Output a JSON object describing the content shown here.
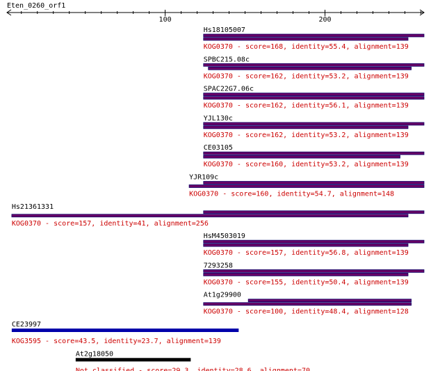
{
  "title": "Eten_0260_orf1",
  "axis": {
    "min": 1,
    "max": 262,
    "ticks": [
      100,
      200
    ]
  },
  "colors": {
    "axis": "#000000",
    "label": "#000000",
    "annotation": "#cc0000",
    "kog_bar_fill": "#660066",
    "kog_bar_stroke": "#000066",
    "kog3595_bar": "#0000aa",
    "unclassified_bar": "#000000"
  },
  "hits": [
    {
      "name": "Hs18105007",
      "annotation": "KOG0370 - score=168, identity=55.4, alignment=139",
      "query_bar": [
        124,
        262
      ],
      "hit_bar": [
        124,
        252
      ],
      "color": "kog"
    },
    {
      "name": "SPBC215.08c",
      "annotation": "KOG0370 - score=162, identity=53.2, alignment=139",
      "query_bar": [
        124,
        262
      ],
      "hit_bar": [
        127,
        254
      ],
      "color": "kog"
    },
    {
      "name": "SPAC22G7.06c",
      "annotation": "KOG0370 - score=162, identity=56.1, alignment=139",
      "query_bar": [
        124,
        262
      ],
      "hit_bar": [
        124,
        262
      ],
      "color": "kog"
    },
    {
      "name": "YJL130c",
      "annotation": "KOG0370 - score=162, identity=53.2, alignment=139",
      "query_bar": [
        124,
        262
      ],
      "hit_bar": [
        124,
        252
      ],
      "color": "kog"
    },
    {
      "name": "CE03105",
      "annotation": "KOG0370 - score=160, identity=53.2, alignment=139",
      "query_bar": [
        124,
        262
      ],
      "hit_bar": [
        124,
        247
      ],
      "color": "kog"
    },
    {
      "name": "YJR109c",
      "annotation": "KOG0370 - score=160, identity=54.7, alignment=148",
      "query_bar": [
        124,
        262
      ],
      "hit_bar": [
        115,
        262
      ],
      "color": "kog"
    },
    {
      "name": "Hs21361331",
      "annotation": "KOG0370 - score=157, identity=41, alignment=256",
      "query_bar": [
        124,
        262
      ],
      "hit_bar": [
        4,
        252
      ],
      "color": "kog"
    },
    {
      "name": "HsM4503019",
      "annotation": "KOG0370 - score=157, identity=56.8, alignment=139",
      "query_bar": [
        124,
        262
      ],
      "hit_bar": [
        124,
        252
      ],
      "color": "kog"
    },
    {
      "name": "7293258",
      "annotation": "KOG0370 - score=155, identity=50.4, alignment=139",
      "query_bar": [
        124,
        262
      ],
      "hit_bar": [
        124,
        252
      ],
      "color": "kog"
    },
    {
      "name": "At1g29900",
      "annotation": "KOG0370 - score=100, identity=48.4, alignment=128",
      "query_bar": [
        152,
        254
      ],
      "hit_bar": [
        124,
        254
      ],
      "color": "kog"
    },
    {
      "name": "CE23997",
      "annotation": "KOG3595 - score=43.5, identity=23.7, alignment=139",
      "single_bar": [
        4,
        146
      ],
      "color": "kog3595"
    },
    {
      "name": "At2g18050",
      "annotation": "Not classified - score=29.3, identity=28.6, alignment=70",
      "single_bar": [
        44,
        116
      ],
      "color": "unclassified"
    }
  ]
}
